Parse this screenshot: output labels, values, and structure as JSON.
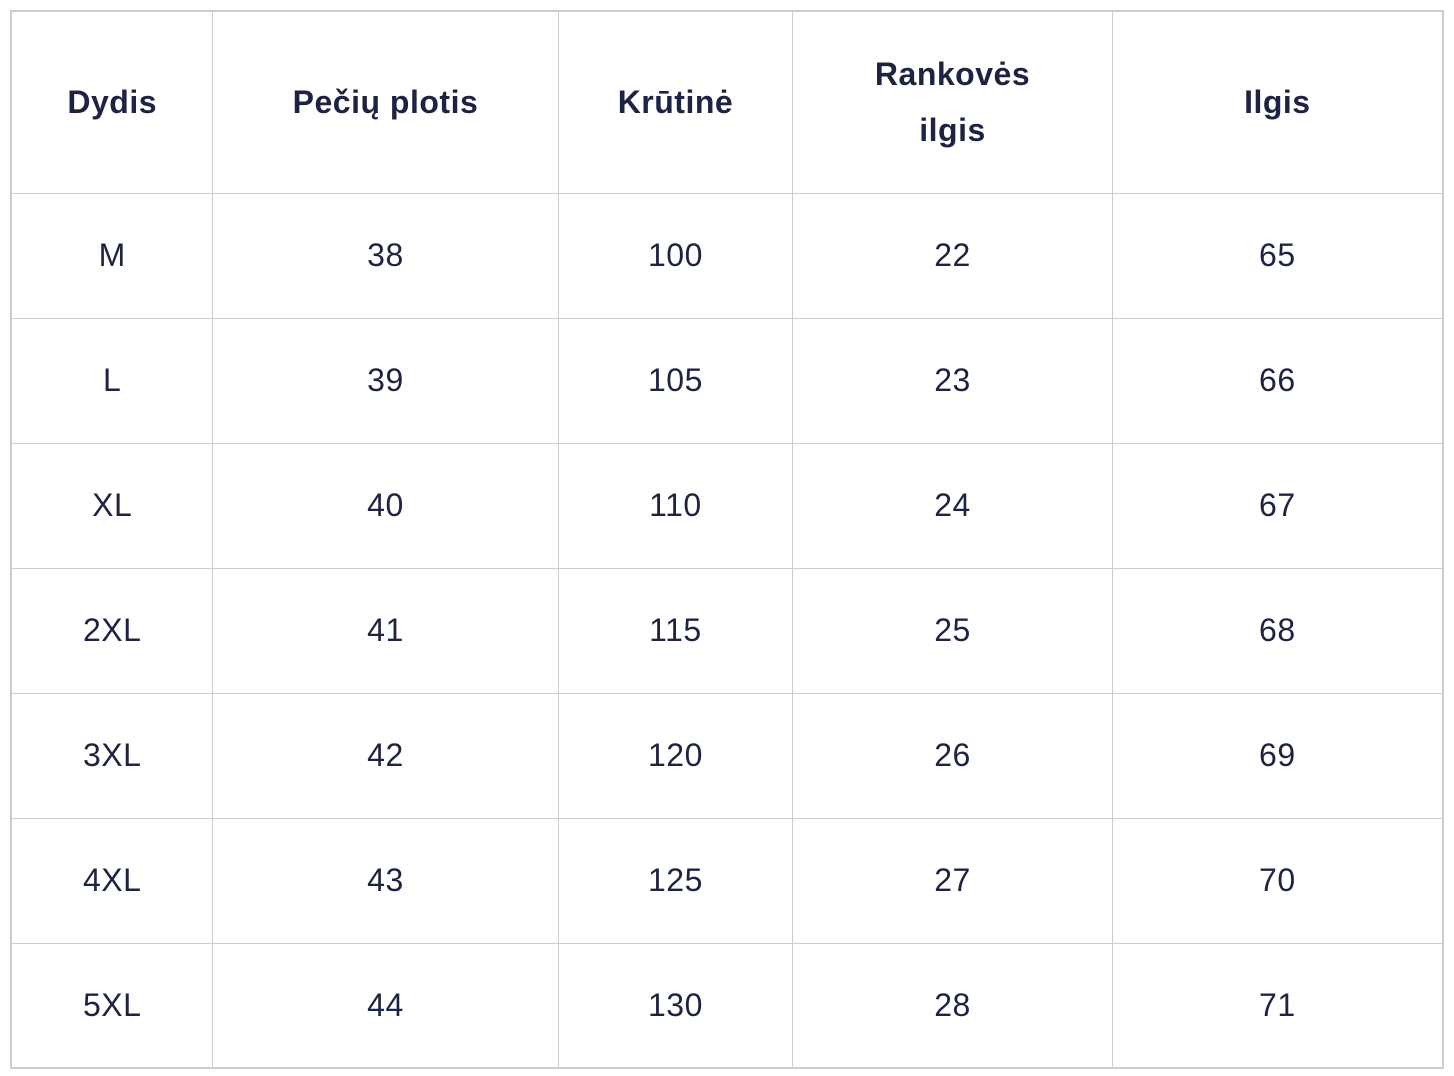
{
  "table": {
    "name": "size-chart",
    "columns": [
      {
        "key": "dydis",
        "label": "Dydis"
      },
      {
        "key": "peciu-plotis",
        "label": "Pečių plotis"
      },
      {
        "key": "krutine",
        "label": "Krūtinė"
      },
      {
        "key": "rankoves-ilgis",
        "label": "Rankovės\nilgis"
      },
      {
        "key": "ilgis",
        "label": "Ilgis"
      }
    ],
    "rows": [
      {
        "dydis": "M",
        "values": [
          "M",
          "38",
          "100",
          "22",
          "65"
        ]
      },
      {
        "dydis": "L",
        "values": [
          "L",
          "39",
          "105",
          "23",
          "66"
        ]
      },
      {
        "dydis": "XL",
        "values": [
          "XL",
          "40",
          "110",
          "24",
          "67"
        ]
      },
      {
        "dydis": "2XL",
        "values": [
          "2XL",
          "41",
          "115",
          "25",
          "68"
        ]
      },
      {
        "dydis": "3XL",
        "values": [
          "3XL",
          "42",
          "120",
          "26",
          "69"
        ]
      },
      {
        "dydis": "4XL",
        "values": [
          "4XL",
          "43",
          "125",
          "27",
          "70"
        ]
      },
      {
        "dydis": "5XL",
        "values": [
          "5XL",
          "44",
          "130",
          "28",
          "71"
        ]
      }
    ],
    "colors": {
      "text": "#1d2342",
      "border": "#cccdd3",
      "background": "#ffffff"
    }
  }
}
